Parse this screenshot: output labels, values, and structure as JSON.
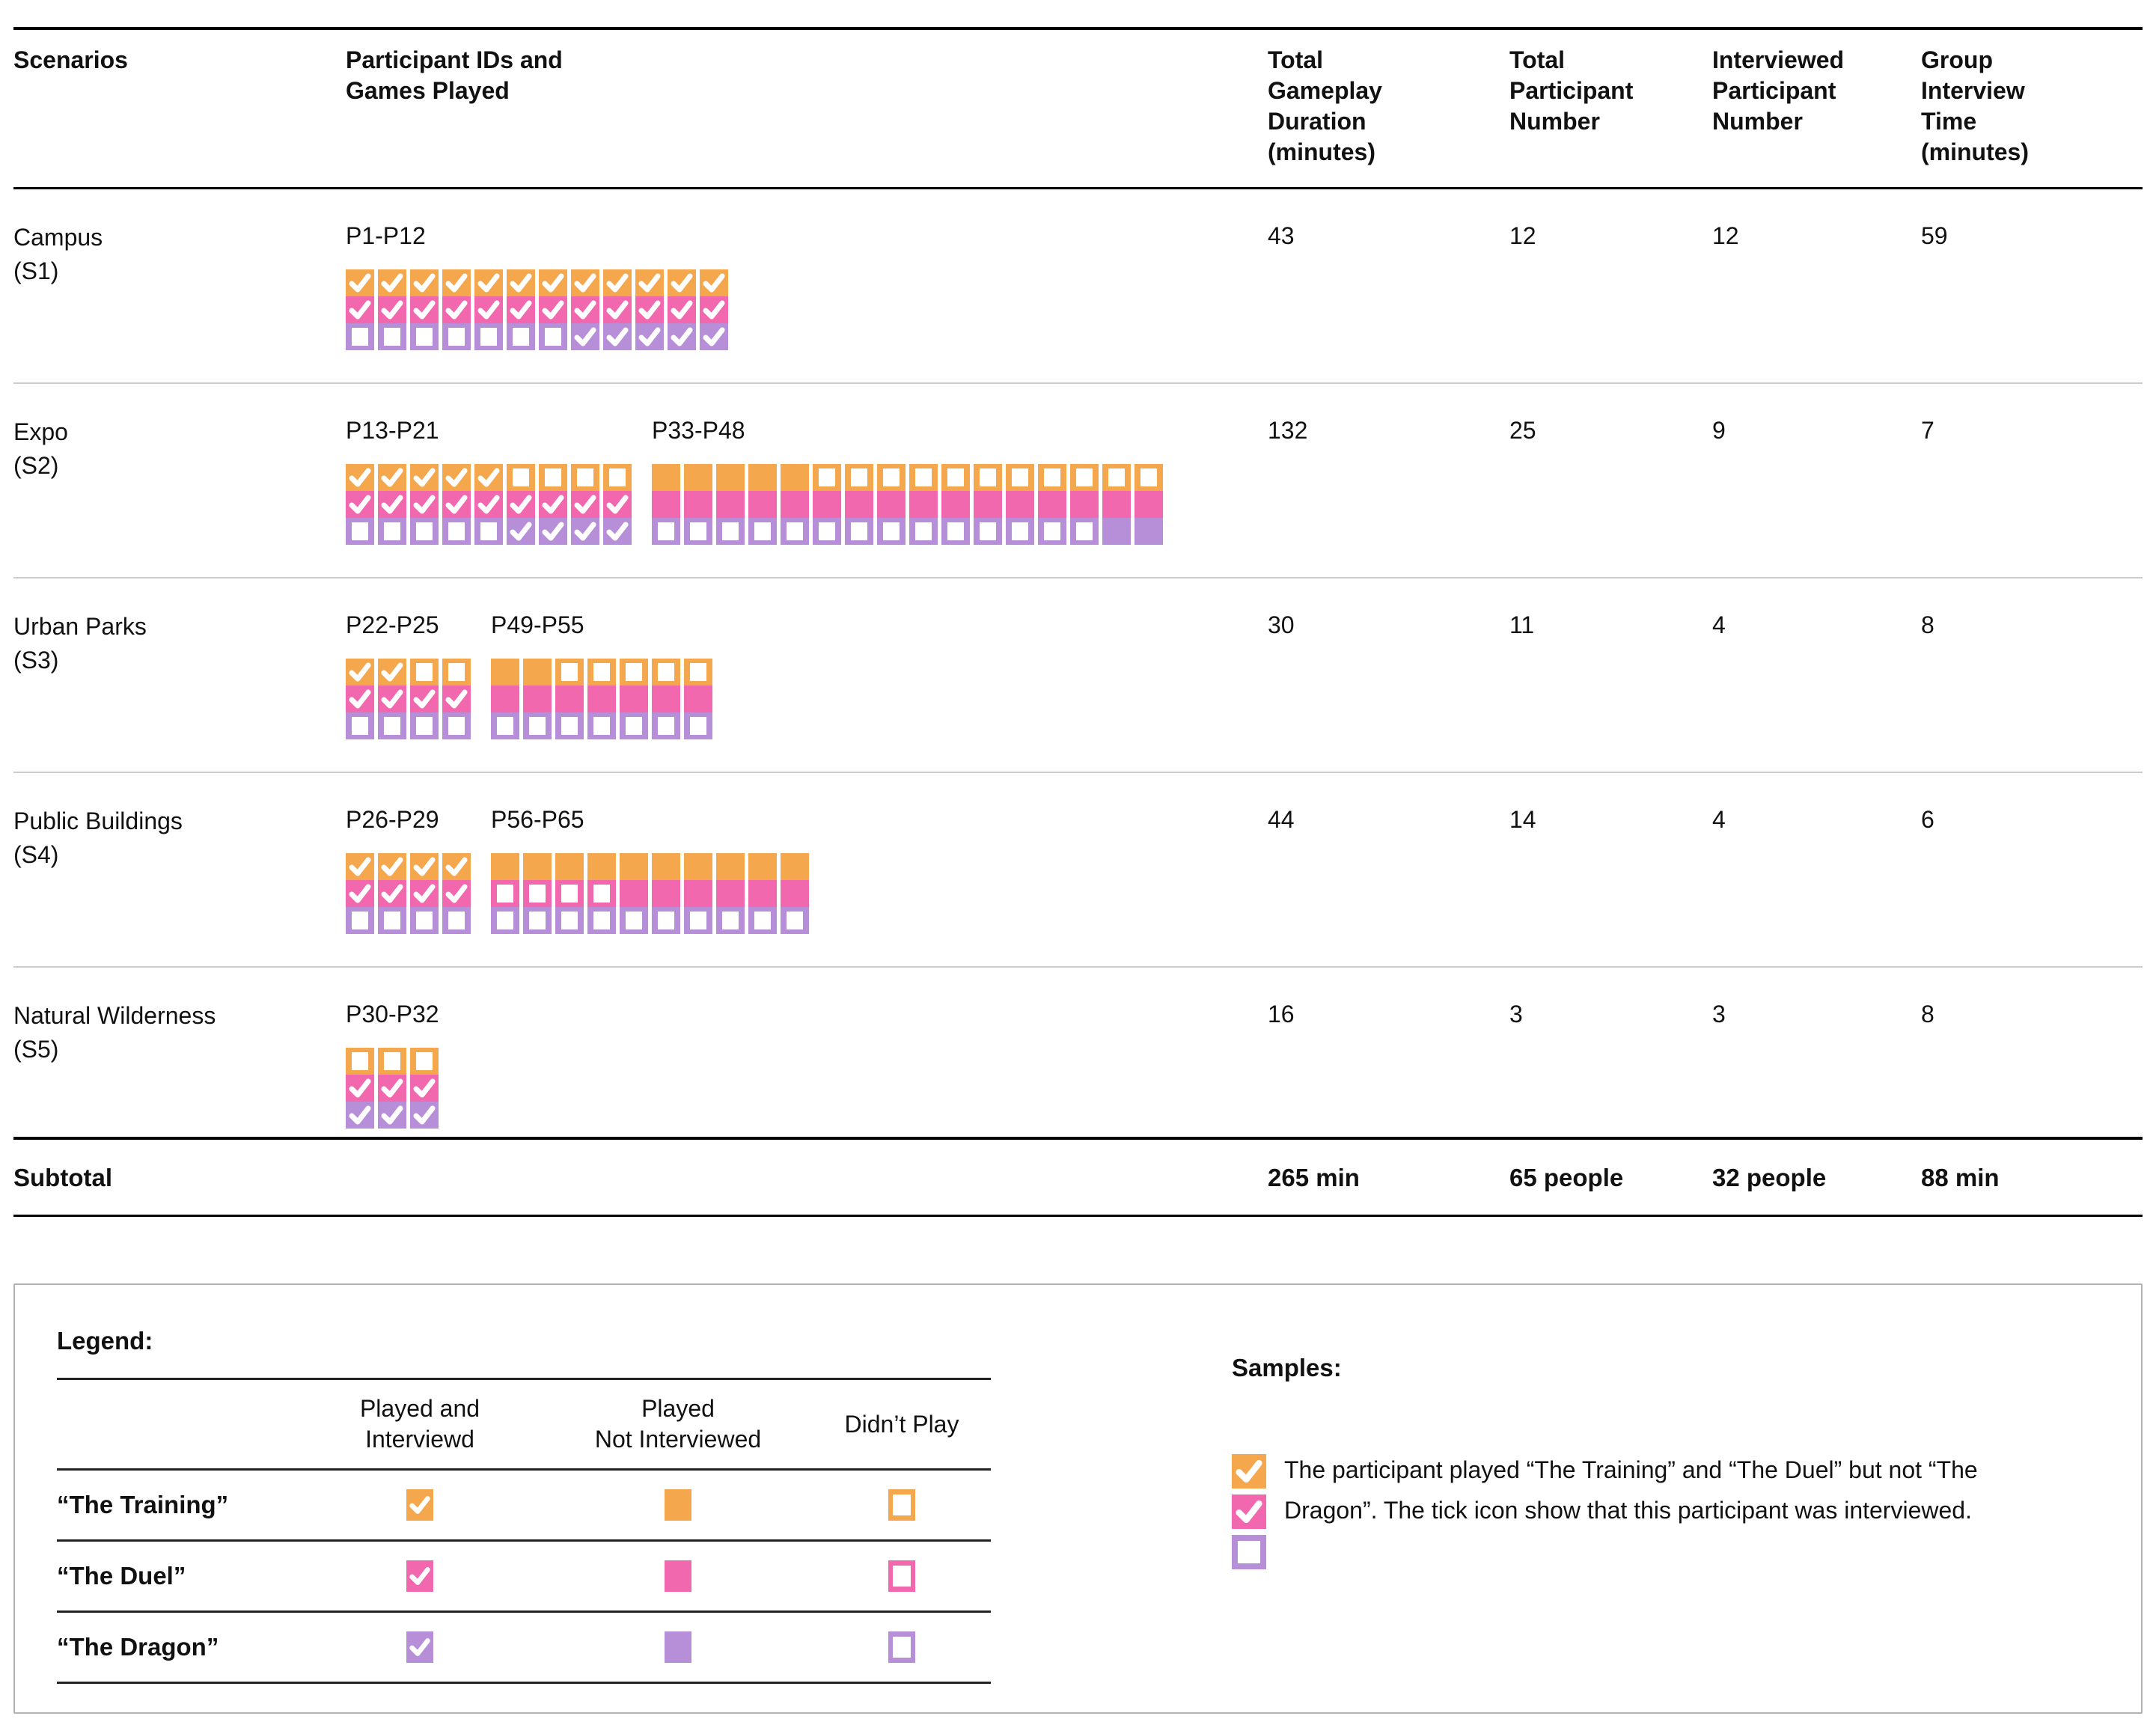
{
  "games": [
    {
      "key": "training",
      "name": "“The Training”",
      "color": "#F4A74C"
    },
    {
      "key": "duel",
      "name": "“The Duel”",
      "color": "#F268AE"
    },
    {
      "key": "dragon",
      "name": "“The Dragon”",
      "color": "#B78FD8"
    }
  ],
  "state_names": {
    "c": "played-and-interviewed",
    "f": "played-not-interviewed",
    "o": "didnt-play"
  },
  "table": {
    "headers": {
      "scenarios": "Scenarios",
      "participants": "Participant IDs and\nGames Played",
      "duration": "Total\nGameplay\nDuration\n(minutes)",
      "total": "Total\nParticipant\nNumber",
      "interviewed": "Interviewed\nParticipant\nNumber",
      "group_time": "Group\nInterview\nTime\n(minutes)"
    },
    "rows": [
      {
        "scenario": "Campus",
        "code": "(S1)",
        "groups": [
          {
            "label": "P1-P12",
            "cols": [
              "cco",
              "cco",
              "cco",
              "cco",
              "cco",
              "cco",
              "cco",
              "ccc",
              "ccc",
              "ccc",
              "ccc",
              "ccc"
            ]
          }
        ],
        "duration": "43",
        "total": "12",
        "interviewed": "12",
        "group_time": "59"
      },
      {
        "scenario": "Expo",
        "code": "(S2)",
        "groups": [
          {
            "label": "P13-P21",
            "cols": [
              "cco",
              "cco",
              "cco",
              "cco",
              "cco",
              "occ",
              "occ",
              "occ",
              "occ"
            ]
          },
          {
            "label": "P33-P48",
            "cols": [
              "ffo",
              "ffo",
              "ffo",
              "ffo",
              "ffo",
              "ofo",
              "ofo",
              "ofo",
              "ofo",
              "ofo",
              "ofo",
              "ofo",
              "ofo",
              "ofo",
              "off",
              "off"
            ]
          }
        ],
        "duration": "132",
        "total": "25",
        "interviewed": "9",
        "group_time": "7"
      },
      {
        "scenario": "Urban Parks",
        "code": "(S3)",
        "groups": [
          {
            "label": "P22-P25",
            "cols": [
              "cco",
              "cco",
              "oco",
              "oco"
            ]
          },
          {
            "label": "P49-P55",
            "cols": [
              "ffo",
              "ffo",
              "ofo",
              "ofo",
              "ofo",
              "ofo",
              "ofo"
            ]
          }
        ],
        "duration": "30",
        "total": "11",
        "interviewed": "4",
        "group_time": "8"
      },
      {
        "scenario": "Public Buildings",
        "code": "(S4)",
        "groups": [
          {
            "label": "P26-P29",
            "cols": [
              "cco",
              "cco",
              "cco",
              "cco"
            ]
          },
          {
            "label": "P56-P65",
            "cols": [
              "foo",
              "foo",
              "foo",
              "foo",
              "ffo",
              "ffo",
              "ffo",
              "ffo",
              "ffo",
              "ffo"
            ]
          }
        ],
        "duration": "44",
        "total": "14",
        "interviewed": "4",
        "group_time": "6"
      },
      {
        "scenario": "Natural Wilderness",
        "code": "(S5)",
        "groups": [
          {
            "label": "P30-P32",
            "cols": [
              "occ",
              "occ",
              "occ"
            ]
          }
        ],
        "duration": "16",
        "total": "3",
        "interviewed": "3",
        "group_time": "8"
      }
    ],
    "subtotal": {
      "label": "Subtotal",
      "duration": "265 min",
      "total": "65 people",
      "interviewed": "32 people",
      "group_time": "88 min"
    }
  },
  "legend": {
    "title": "Legend:",
    "columns": [
      {
        "header": "Played and\nInterviewd",
        "state": "c"
      },
      {
        "header": "Played\nNot Interviewed",
        "state": "f"
      },
      {
        "header": "Didn’t Play",
        "state": "o"
      }
    ]
  },
  "samples": {
    "title": "Samples:",
    "stack": [
      {
        "game": "training",
        "state": "c"
      },
      {
        "game": "duel",
        "state": "c"
      },
      {
        "game": "dragon",
        "state": "o"
      }
    ],
    "text": "The participant played “The Training” and “The Duel” but not “The Dragon”. The tick icon show that this participant was interviewed."
  }
}
